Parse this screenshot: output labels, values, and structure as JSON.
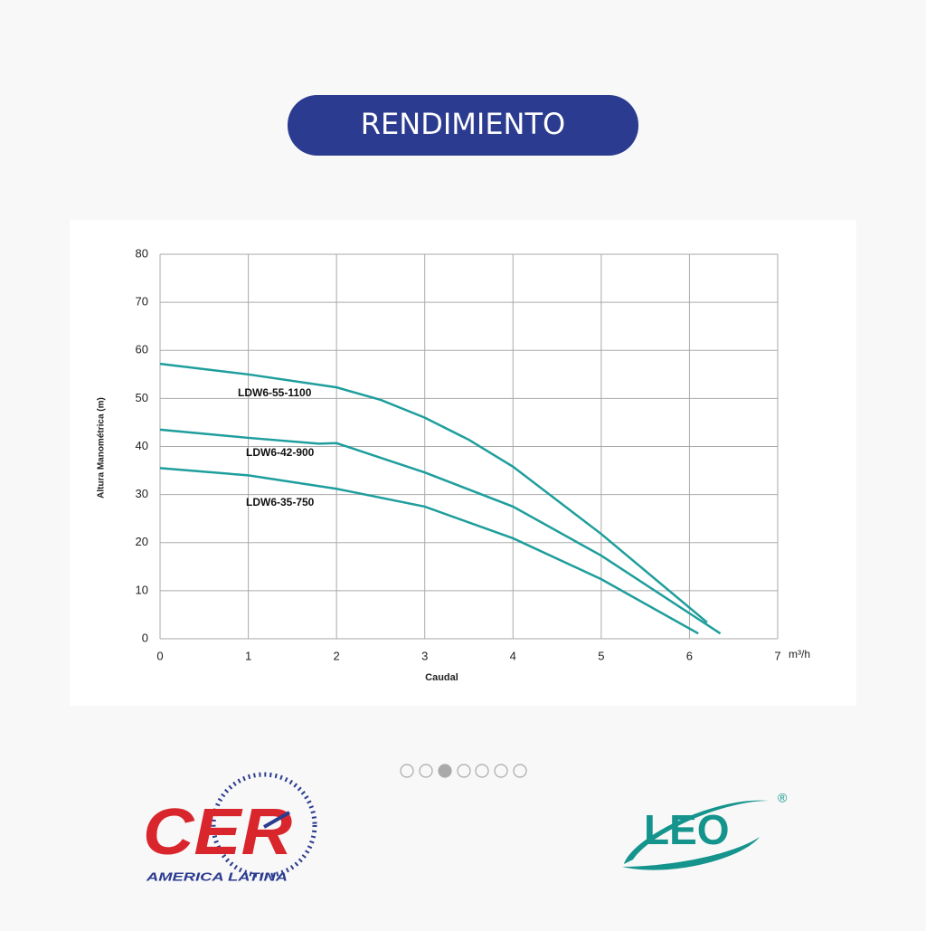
{
  "header": {
    "title": "RENDIMIENTO"
  },
  "chart_data": {
    "type": "line",
    "xlabel": "Caudal",
    "x_unit": "m³/h",
    "ylabel": "Altura Manométrica (m)",
    "xlim": [
      0,
      7
    ],
    "xticks": [
      0,
      1,
      2,
      3,
      4,
      5,
      6,
      7
    ],
    "ylim": [
      0,
      80
    ],
    "yticks": [
      0,
      10,
      20,
      30,
      40,
      50,
      60,
      70,
      80
    ],
    "grid": true,
    "series": [
      {
        "name": "LDW6-55-1100",
        "color": "#1e9e9c",
        "x": [
          0,
          1,
          2,
          2.5,
          3,
          3.5,
          4,
          5,
          6.2
        ],
        "values": [
          57.2,
          55,
          52.3,
          49.7,
          46,
          41.4,
          35.8,
          21.8,
          3.4
        ]
      },
      {
        "name": "LDW6-42-900",
        "color": "#1e9e9c",
        "x": [
          0,
          1,
          1.8,
          2,
          3,
          4,
          5,
          6.35
        ],
        "values": [
          43.5,
          41.8,
          40.6,
          40.7,
          34.6,
          27.5,
          17.3,
          1.1
        ]
      },
      {
        "name": "LDW6-35-750",
        "color": "#1e9e9c",
        "x": [
          0,
          1,
          2,
          3,
          4,
          5,
          6.1
        ],
        "values": [
          35.5,
          34,
          31.2,
          27.5,
          20.9,
          12.4,
          1.1
        ]
      }
    ]
  },
  "logos": {
    "left": {
      "name": "CER",
      "subtitle": "AMERICA LATINA"
    },
    "right": {
      "name": "LEO",
      "mark": "®"
    }
  }
}
